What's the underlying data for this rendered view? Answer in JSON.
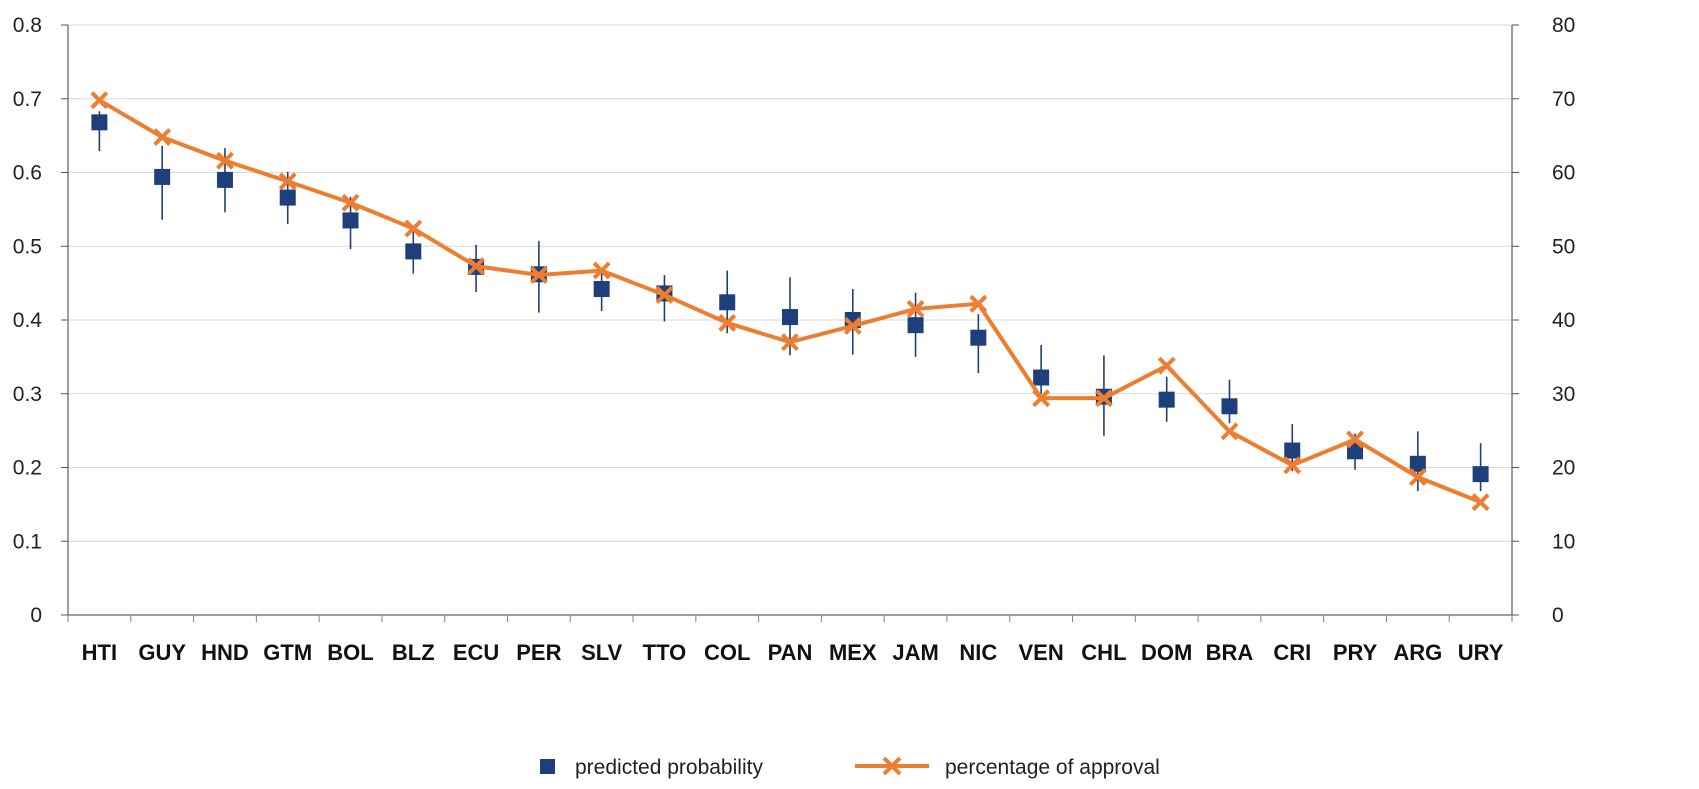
{
  "chart_data": {
    "type": "line",
    "categories": [
      "HTI",
      "GUY",
      "HND",
      "GTM",
      "BOL",
      "BLZ",
      "ECU",
      "PER",
      "SLV",
      "TTO",
      "COL",
      "PAN",
      "MEX",
      "JAM",
      "NIC",
      "VEN",
      "CHL",
      "DOM",
      "BRA",
      "CRI",
      "PRY",
      "ARG",
      "URY"
    ],
    "left_axis": {
      "ylim": [
        0,
        0.8
      ],
      "ticks": [
        "0",
        "0.1",
        "0.2",
        "0.3",
        "0.4",
        "0.5",
        "0.6",
        "0.7",
        "0.8"
      ]
    },
    "right_axis": {
      "ylim": [
        0,
        80
      ],
      "ticks": [
        "0",
        "10",
        "20",
        "30",
        "40",
        "50",
        "60",
        "70",
        "80"
      ]
    },
    "grid": true,
    "legend_position": "bottom",
    "series": [
      {
        "name": "predicted probability",
        "axis": "left",
        "marker": "square",
        "color": "#1F3F7A",
        "values": [
          0.668,
          0.594,
          0.59,
          0.566,
          0.535,
          0.493,
          0.472,
          0.462,
          0.442,
          0.436,
          0.424,
          0.404,
          0.4,
          0.393,
          0.376,
          0.322,
          0.296,
          0.292,
          0.283,
          0.223,
          0.222,
          0.205,
          0.191
        ],
        "ci_low": [
          0.629,
          0.536,
          0.546,
          0.53,
          0.496,
          0.463,
          0.438,
          0.41,
          0.412,
          0.398,
          0.382,
          0.352,
          0.353,
          0.35,
          0.328,
          0.3,
          0.243,
          0.262,
          0.26,
          0.195,
          0.197,
          0.168,
          0.168
        ],
        "ci_high": [
          0.683,
          0.636,
          0.633,
          0.601,
          0.567,
          0.528,
          0.502,
          0.507,
          0.47,
          0.461,
          0.467,
          0.458,
          0.442,
          0.437,
          0.408,
          0.366,
          0.352,
          0.323,
          0.319,
          0.259,
          0.246,
          0.249,
          0.233
        ]
      },
      {
        "name": "percentage of approval",
        "axis": "right",
        "marker": "x",
        "color": "#ED7D31",
        "values": [
          69.8,
          64.8,
          61.6,
          58.8,
          55.9,
          52.4,
          47.3,
          46.1,
          46.7,
          43.4,
          39.6,
          37.0,
          39.2,
          41.5,
          42.2,
          29.4,
          29.4,
          33.8,
          24.9,
          20.3,
          23.8,
          18.7,
          15.3
        ]
      }
    ]
  }
}
